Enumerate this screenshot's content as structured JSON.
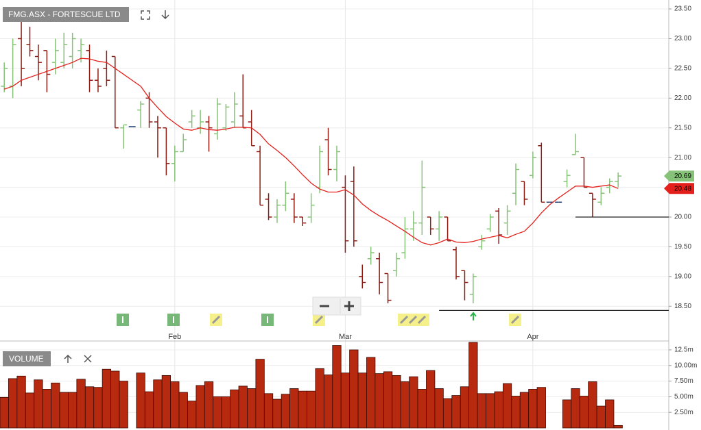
{
  "chart_data": [
    {
      "type": "ohlc",
      "title": "FMG.ASX - FORTESCUE LTD",
      "categories": [
        null,
        null,
        null,
        null,
        null,
        null,
        null,
        null,
        null,
        null,
        null,
        null,
        null,
        null,
        null,
        null,
        null,
        null,
        null,
        null,
        "Feb",
        null,
        null,
        null,
        null,
        null,
        null,
        null,
        null,
        null,
        null,
        null,
        null,
        null,
        null,
        null,
        null,
        null,
        null,
        null,
        "Mar",
        null,
        null,
        null,
        null,
        null,
        null,
        null,
        null,
        null,
        null,
        null,
        null,
        null,
        null,
        null,
        null,
        null,
        null,
        null,
        null,
        null,
        "Apr",
        null,
        null,
        null,
        null,
        null,
        null,
        null,
        null,
        null,
        null
      ],
      "open": [
        22.2,
        22.2,
        23.0,
        22.9,
        22.7,
        22.8,
        22.6,
        22.6,
        22.7,
        22.8,
        22.8,
        22.3,
        22.5,
        22.7,
        21.5,
        21.52,
        21.8,
        22.0,
        21.6,
        21.5,
        20.9,
        21.1,
        21.6,
        21.5,
        21.6,
        21.4,
        21.5,
        21.6,
        21.7,
        21.6,
        21.1,
        20.3,
        20.0,
        20.2,
        20.3,
        20.0,
        20.0,
        20.5,
        21.3,
        20.8,
        20.5,
        20.6,
        19.0,
        19.3,
        19.3,
        19.05,
        19.1,
        19.4,
        19.8,
        19.9,
        20.0,
        19.8,
        20.0,
        19.45,
        19.1,
        18.7,
        19.5,
        19.8,
        20.1,
        19.9,
        20.4,
        20.6,
        20.7,
        21.2,
        20.25,
        20.25,
        20.6,
        21.05,
        21.0,
        20.4,
        20.25,
        20.5,
        20.6
      ],
      "high": [
        22.6,
        23.0,
        23.3,
        23.2,
        22.9,
        22.8,
        23.0,
        23.1,
        23.1,
        23.0,
        22.9,
        22.5,
        22.8,
        22.7,
        21.55,
        21.52,
        21.95,
        22.1,
        21.7,
        21.5,
        21.2,
        21.4,
        21.8,
        21.8,
        21.7,
        22.0,
        21.9,
        22.1,
        22.4,
        21.8,
        21.2,
        20.4,
        20.3,
        20.6,
        20.4,
        20.0,
        20.4,
        21.2,
        21.5,
        21.2,
        20.7,
        20.85,
        19.2,
        19.5,
        19.4,
        19.05,
        19.4,
        20.0,
        20.1,
        20.95,
        20.0,
        20.1,
        20.0,
        19.5,
        19.1,
        19.05,
        19.7,
        20.05,
        20.15,
        20.2,
        20.9,
        20.6,
        21.1,
        21.25,
        20.25,
        20.25,
        20.8,
        21.4,
        21.0,
        20.4,
        20.5,
        20.65,
        20.75
      ],
      "low": [
        22.1,
        22.0,
        22.2,
        22.7,
        22.3,
        22.1,
        22.4,
        22.5,
        22.5,
        22.6,
        22.1,
        22.1,
        22.2,
        21.5,
        21.15,
        21.52,
        21.5,
        21.5,
        21.0,
        20.7,
        20.6,
        21.1,
        21.5,
        21.4,
        21.1,
        21.3,
        21.45,
        21.5,
        21.5,
        21.2,
        20.2,
        19.95,
        19.9,
        20.1,
        19.9,
        19.85,
        19.9,
        20.4,
        20.7,
        20.6,
        19.4,
        19.5,
        18.8,
        19.2,
        18.7,
        18.55,
        19.0,
        19.3,
        19.6,
        19.7,
        19.7,
        19.6,
        19.6,
        18.95,
        18.6,
        18.55,
        19.45,
        19.75,
        19.55,
        19.7,
        20.2,
        20.2,
        20.65,
        20.25,
        20.25,
        20.25,
        20.5,
        21.05,
        20.5,
        20.0,
        20.2,
        20.4,
        20.5
      ],
      "close": [
        22.5,
        22.9,
        22.5,
        22.8,
        22.6,
        22.4,
        22.8,
        22.9,
        23.0,
        22.9,
        22.3,
        22.2,
        22.3,
        21.5,
        21.55,
        21.52,
        21.9,
        21.6,
        21.5,
        20.9,
        21.1,
        21.3,
        21.7,
        21.6,
        21.5,
        21.9,
        21.85,
        21.9,
        21.5,
        21.2,
        20.2,
        20.0,
        20.2,
        20.4,
        20.0,
        19.9,
        20.2,
        21.1,
        20.8,
        21.1,
        19.6,
        19.6,
        18.9,
        19.4,
        18.9,
        18.6,
        19.3,
        19.8,
        19.9,
        20.5,
        19.8,
        20.0,
        19.6,
        19.0,
        18.9,
        19.0,
        19.6,
        20.0,
        19.7,
        20.1,
        20.8,
        20.3,
        21.0,
        20.25,
        20.25,
        20.25,
        20.7,
        21.1,
        20.5,
        20.3,
        20.4,
        20.6,
        20.69
      ],
      "up_color": "#86c277",
      "down_color": "#8e1c12",
      "flat_color": "#1e3a6e",
      "ma": {
        "color": "#e3201b",
        "values": [
          22.15,
          22.2,
          22.3,
          22.35,
          22.4,
          22.45,
          22.5,
          22.55,
          22.6,
          22.67,
          22.66,
          22.62,
          22.6,
          22.5,
          22.4,
          22.3,
          22.2,
          22.0,
          21.84,
          21.69,
          21.58,
          21.48,
          21.46,
          21.5,
          21.47,
          21.46,
          21.48,
          21.51,
          21.51,
          21.5,
          21.39,
          21.23,
          21.12,
          21.0,
          20.86,
          20.71,
          20.57,
          20.47,
          20.42,
          20.42,
          20.46,
          20.37,
          20.22,
          20.11,
          20.02,
          19.94,
          19.85,
          19.76,
          19.66,
          19.57,
          19.53,
          19.57,
          19.63,
          19.58,
          19.57,
          19.59,
          19.63,
          19.66,
          19.69,
          19.65,
          19.71,
          19.76,
          19.9,
          20.07,
          20.21,
          20.32,
          20.42,
          20.52,
          20.52,
          20.5,
          20.52,
          20.54,
          20.48
        ]
      },
      "lines": [
        {
          "value": 20.0,
          "from": 67
        },
        {
          "value": 18.43,
          "from": 51
        }
      ],
      "ylim": [
        18.1,
        23.65
      ],
      "yticks": [
        {
          "value": 18.5,
          "label": "18.50"
        },
        {
          "value": 19,
          "label": "19.00"
        },
        {
          "value": 19.5,
          "label": "19.50"
        },
        {
          "value": 20,
          "label": "20.00"
        },
        {
          "value": 20.5,
          "label": "20.50"
        },
        {
          "value": 21,
          "label": "21.00"
        },
        {
          "value": 21.5,
          "label": "21.50"
        },
        {
          "value": 22,
          "label": "22.00"
        },
        {
          "value": 22.5,
          "label": "22.50"
        },
        {
          "value": 23,
          "label": "23.00"
        },
        {
          "value": 23.5,
          "label": "23.50"
        }
      ],
      "grid": true
    },
    {
      "type": "bar",
      "title": "VOLUME",
      "color": "#b82a0f",
      "values": [
        4.9,
        7.9,
        8.3,
        5.6,
        7.7,
        6.2,
        7.2,
        5.7,
        5.7,
        7.8,
        6.6,
        6.5,
        9.4,
        9.1,
        7.5,
        null,
        8.8,
        5.8,
        7.7,
        8.4,
        7.4,
        5.7,
        4.3,
        6.8,
        7.4,
        5.0,
        5.0,
        6.1,
        6.7,
        6.3,
        11.0,
        5.5,
        4.6,
        5.4,
        6.3,
        5.9,
        5.9,
        9.5,
        8.5,
        13.2,
        8.8,
        12.5,
        8.8,
        11.3,
        8.7,
        9.0,
        8.4,
        7.4,
        8.2,
        6.2,
        9.2,
        6.3,
        4.7,
        5.2,
        6.6,
        13.7,
        5.5,
        5.5,
        5.8,
        7.1,
        5.1,
        5.7,
        6.2,
        6.5,
        null,
        null,
        4.5,
        6.3,
        5.1,
        7.4,
        3.5,
        4.5,
        0.4
      ],
      "ylim": [
        0,
        13.7
      ],
      "yticks": [
        {
          "value": 2.5,
          "label": "2.50m"
        },
        {
          "value": 5,
          "label": "5.00m"
        },
        {
          "value": 7.5,
          "label": "7.50m"
        },
        {
          "value": 10,
          "label": "10.00m"
        },
        {
          "value": 12.5,
          "label": "12.5m"
        }
      ],
      "grid": true
    }
  ]
}
